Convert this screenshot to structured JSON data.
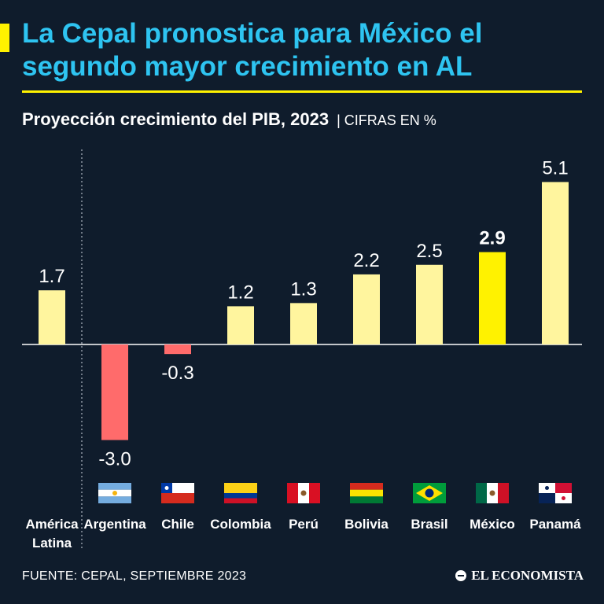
{
  "title": "La Cepal pronostica para México el segundo mayor crecimiento en AL",
  "subtitle": "Proyección crecimiento del PIB, 2023",
  "unit_note": "| CIFRAS EN %",
  "footer": {
    "source": "FUENTE: CEPAL, SEPTIEMBRE 2023",
    "logo_text": "EL ECONOMISTA"
  },
  "colors": {
    "background": "#0f1c2c",
    "title": "#2ec4f1",
    "accent": "#fff200",
    "positive_bar": "#fff59e",
    "negative_bar": "#ff6b6b",
    "highlight_bar": "#fff200"
  },
  "chart_data": {
    "type": "bar",
    "title": "Proyección crecimiento del PIB, 2023",
    "ylabel": "CIFRAS EN %",
    "ylim": [
      -3.0,
      5.1
    ],
    "grid": false,
    "categories": [
      "América Latina",
      "Argentina",
      "Chile",
      "Colombia",
      "Perú",
      "Bolivia",
      "Brasil",
      "México",
      "Panamá"
    ],
    "values": [
      1.7,
      -3.0,
      -0.3,
      1.2,
      1.3,
      2.2,
      2.5,
      2.9,
      5.1
    ],
    "value_labels": [
      "1.7",
      "-3.0",
      "-0.3",
      "1.2",
      "1.3",
      "2.2",
      "2.5",
      "2.9",
      "5.1"
    ],
    "highlight": "México",
    "flags": [
      "",
      "argentina-flag",
      "chile-flag",
      "colombia-flag",
      "peru-flag",
      "bolivia-flag",
      "brazil-flag",
      "mexico-flag",
      "panama-flag"
    ]
  }
}
